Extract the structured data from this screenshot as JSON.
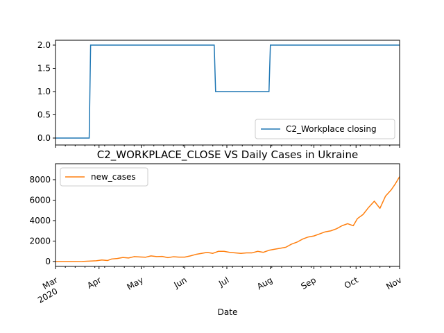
{
  "chart_data": [
    {
      "type": "line",
      "title": "",
      "xlabel": "",
      "ylabel": "",
      "ylim": [
        0.0,
        2.0
      ],
      "yticks": [
        "0.0",
        "0.5",
        "1.0",
        "1.5",
        "2.0"
      ],
      "legend_position": "lower-right",
      "grid": false,
      "series": [
        {
          "name": "C2_Workplace closing",
          "color": "#1f77b4",
          "points": [
            [
              "2020-03-01",
              0
            ],
            [
              "2020-03-25",
              0
            ],
            [
              "2020-03-26",
              2
            ],
            [
              "2020-06-22",
              2
            ],
            [
              "2020-06-23",
              1
            ],
            [
              "2020-07-31",
              1
            ],
            [
              "2020-08-01",
              2
            ],
            [
              "2020-11-01",
              2
            ]
          ]
        }
      ]
    },
    {
      "type": "line",
      "title": "C2_WORKPLACE_CLOSE VS Daily Cases in Ukraine",
      "xlabel": "Date",
      "ylabel": "",
      "ylim": [
        0,
        8000
      ],
      "yticks": [
        "0",
        "2000",
        "4000",
        "6000",
        "8000"
      ],
      "x_tick_labels": [
        {
          "date": "2020-03-01",
          "label": "Mar",
          "sublabel": "2020"
        },
        {
          "date": "2020-04-01",
          "label": "Apr"
        },
        {
          "date": "2020-05-01",
          "label": "May"
        },
        {
          "date": "2020-06-01",
          "label": "Jun"
        },
        {
          "date": "2020-07-01",
          "label": "Jul"
        },
        {
          "date": "2020-08-01",
          "label": "Aug"
        },
        {
          "date": "2020-09-01",
          "label": "Sep"
        },
        {
          "date": "2020-10-01",
          "label": "Oct"
        },
        {
          "date": "2020-11-01",
          "label": "Nov"
        }
      ],
      "legend_position": "upper-left",
      "grid": false,
      "series": [
        {
          "name": "new_cases",
          "color": "#ff7f0e",
          "points": [
            [
              "2020-03-01",
              0
            ],
            [
              "2020-03-15",
              0
            ],
            [
              "2020-03-20",
              10
            ],
            [
              "2020-03-25",
              40
            ],
            [
              "2020-03-30",
              80
            ],
            [
              "2020-04-03",
              150
            ],
            [
              "2020-04-07",
              100
            ],
            [
              "2020-04-10",
              250
            ],
            [
              "2020-04-14",
              300
            ],
            [
              "2020-04-18",
              400
            ],
            [
              "2020-04-22",
              350
            ],
            [
              "2020-04-26",
              480
            ],
            [
              "2020-04-30",
              450
            ],
            [
              "2020-05-04",
              420
            ],
            [
              "2020-05-08",
              550
            ],
            [
              "2020-05-12",
              480
            ],
            [
              "2020-05-16",
              500
            ],
            [
              "2020-05-20",
              380
            ],
            [
              "2020-05-24",
              470
            ],
            [
              "2020-05-28",
              430
            ],
            [
              "2020-06-01",
              430
            ],
            [
              "2020-06-05",
              550
            ],
            [
              "2020-06-09",
              700
            ],
            [
              "2020-06-13",
              800
            ],
            [
              "2020-06-17",
              900
            ],
            [
              "2020-06-21",
              800
            ],
            [
              "2020-06-25",
              1000
            ],
            [
              "2020-06-29",
              1000
            ],
            [
              "2020-07-03",
              900
            ],
            [
              "2020-07-07",
              850
            ],
            [
              "2020-07-11",
              800
            ],
            [
              "2020-07-15",
              850
            ],
            [
              "2020-07-19",
              850
            ],
            [
              "2020-07-23",
              1000
            ],
            [
              "2020-07-27",
              900
            ],
            [
              "2020-07-31",
              1100
            ],
            [
              "2020-08-04",
              1200
            ],
            [
              "2020-08-08",
              1300
            ],
            [
              "2020-08-12",
              1400
            ],
            [
              "2020-08-16",
              1700
            ],
            [
              "2020-08-20",
              1900
            ],
            [
              "2020-08-24",
              2200
            ],
            [
              "2020-08-28",
              2400
            ],
            [
              "2020-09-01",
              2500
            ],
            [
              "2020-09-05",
              2700
            ],
            [
              "2020-09-09",
              2900
            ],
            [
              "2020-09-13",
              3000
            ],
            [
              "2020-09-17",
              3200
            ],
            [
              "2020-09-21",
              3500
            ],
            [
              "2020-09-25",
              3700
            ],
            [
              "2020-09-29",
              3500
            ],
            [
              "2020-10-02",
              4200
            ],
            [
              "2020-10-06",
              4600
            ],
            [
              "2020-10-10",
              5300
            ],
            [
              "2020-10-14",
              5900
            ],
            [
              "2020-10-18",
              5200
            ],
            [
              "2020-10-22",
              6400
            ],
            [
              "2020-10-26",
              7000
            ],
            [
              "2020-10-29",
              7600
            ],
            [
              "2020-11-01",
              8300
            ]
          ]
        }
      ]
    }
  ]
}
